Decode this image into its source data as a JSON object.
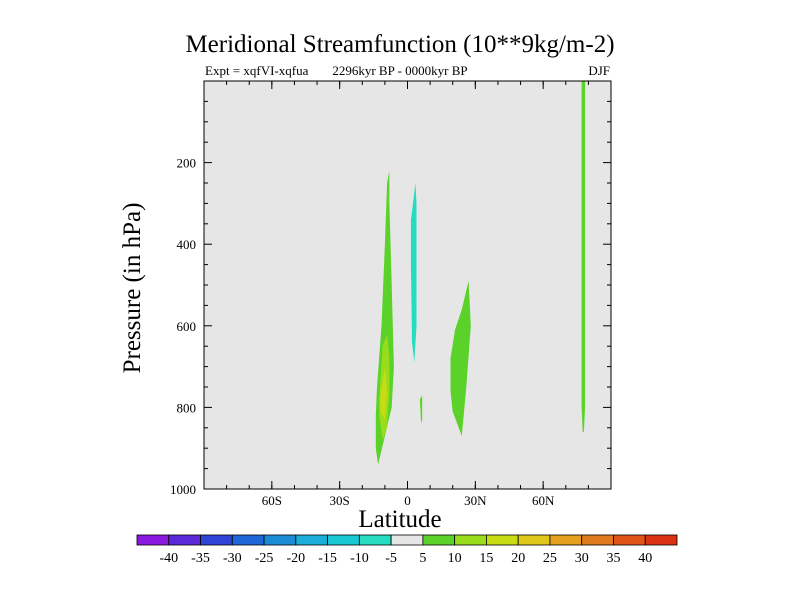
{
  "chart_data": {
    "type": "contour",
    "title": "Meridional Streamfunction (10**9kg/m-2)",
    "subtitle_left": "Expt = xqfVI-xqfua",
    "subtitle_center": "2296kyr BP - 0000kyr BP",
    "subtitle_right": "DJF",
    "xlabel": "Latitude",
    "ylabel": "Pressure (in hPa)",
    "xlim": [
      -90,
      90
    ],
    "ylim": [
      1000,
      0
    ],
    "x_ticks": [
      {
        "value": -60,
        "label": "60S"
      },
      {
        "value": -30,
        "label": "30S"
      },
      {
        "value": 0,
        "label": "0"
      },
      {
        "value": 30,
        "label": "30N"
      },
      {
        "value": 60,
        "label": "60N"
      }
    ],
    "y_ticks": [
      {
        "value": 200,
        "label": "200"
      },
      {
        "value": 400,
        "label": "400"
      },
      {
        "value": 600,
        "label": "600"
      },
      {
        "value": 800,
        "label": "800"
      },
      {
        "value": 1000,
        "label": "1000"
      }
    ],
    "background_fill": "#e6e6e6",
    "colorbar": {
      "labels": [
        "-40",
        "-35",
        "-30",
        "-25",
        "-20",
        "-15",
        "-10",
        "-5",
        "5",
        "10",
        "15",
        "20",
        "25",
        "30",
        "35",
        "40"
      ],
      "colors": [
        "#8a1ae0",
        "#5a28d8",
        "#2f44d6",
        "#1f66d8",
        "#1a8cd6",
        "#1aaed8",
        "#1ac8d4",
        "#26dcc0",
        "#e6e6e6",
        "#5ad22a",
        "#98dc1a",
        "#c8dc14",
        "#e0c81a",
        "#e4a01e",
        "#e07a1e",
        "#e05418",
        "#dc3214"
      ]
    },
    "regions": [
      {
        "name": "sh-positive-cell",
        "level": "5 to 10",
        "color": "#5ad22a",
        "lat": [
          -13.5,
          -11.5,
          -10,
          -9,
          -8,
          -8,
          -7,
          -6,
          -7,
          -10,
          -13,
          -14,
          -14
        ],
        "pres": [
          750,
          600,
          400,
          250,
          220,
          300,
          500,
          700,
          800,
          870,
          940,
          900,
          820
        ]
      },
      {
        "name": "sh-inner-positive-core",
        "level": "10 to 15",
        "color": "#98dc1a",
        "lat": [
          -12.5,
          -11,
          -9,
          -8,
          -8,
          -9,
          -11,
          -12.5
        ],
        "pres": [
          780,
          650,
          620,
          680,
          760,
          850,
          880,
          820
        ]
      },
      {
        "name": "sh-inner-center",
        "level": "15 to 20",
        "color": "#c8dc14",
        "lat": [
          -12,
          -10,
          -9,
          -10,
          -12
        ],
        "pres": [
          770,
          700,
          760,
          830,
          810
        ]
      },
      {
        "name": "equatorial-negative-cell",
        "level": "-10 to -5",
        "color": "#26dcc0",
        "lat": [
          2,
          3.5,
          4,
          4,
          3,
          2,
          1.5,
          1.5
        ],
        "pres": [
          320,
          250,
          300,
          600,
          690,
          640,
          450,
          340
        ]
      },
      {
        "name": "equatorial-small-positive",
        "level": "5 to 10",
        "color": "#5ad22a",
        "lat": [
          5.5,
          6.5,
          6.5,
          6
        ],
        "pres": [
          780,
          770,
          830,
          840
        ]
      },
      {
        "name": "nh-positive-cell",
        "level": "5 to 10",
        "color": "#5ad22a",
        "lat": [
          19,
          21,
          24,
          27,
          28,
          26,
          24,
          20,
          19
        ],
        "pres": [
          680,
          610,
          560,
          490,
          600,
          750,
          870,
          810,
          760
        ]
      },
      {
        "name": "high-latitude-positive-strip",
        "level": "5 to 10",
        "color": "#5ad22a",
        "lat": [
          77,
          78.5,
          78.5,
          78,
          77.5,
          77
        ],
        "pres": [
          0,
          0,
          800,
          860,
          860,
          800
        ]
      }
    ]
  }
}
